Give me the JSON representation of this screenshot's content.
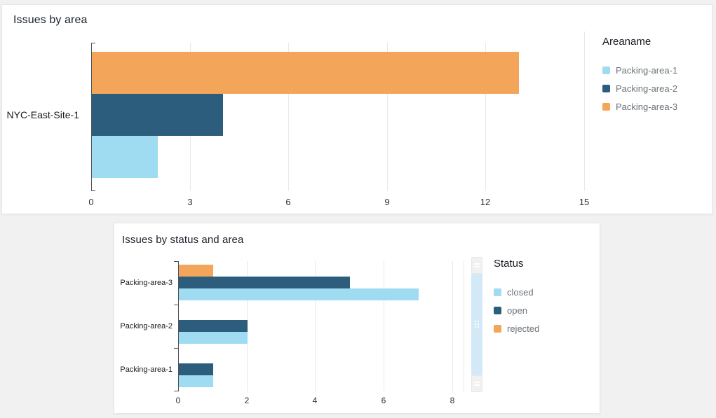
{
  "page": {
    "background_color": "#f1f1f2"
  },
  "chart_data": [
    {
      "id": "issues-by-area",
      "type": "bar",
      "orientation": "horizontal",
      "title": "Issues by area",
      "categories": [
        "NYC-East-Site-1"
      ],
      "series": [
        {
          "name": "Packing-area-1",
          "color": "#9FDCF1",
          "values": [
            2
          ]
        },
        {
          "name": "Packing-area-2",
          "color": "#2D5D7C",
          "values": [
            4
          ]
        },
        {
          "name": "Packing-area-3",
          "color": "#F3A65A",
          "values": [
            13
          ]
        }
      ],
      "x_ticks": [
        0,
        3,
        6,
        9,
        12,
        15
      ],
      "xlim": [
        0,
        15
      ],
      "grid": true,
      "legend_title": "Areaname",
      "legend_position": "right",
      "bar_order_top_to_bottom": [
        "Packing-area-3",
        "Packing-area-2",
        "Packing-area-1"
      ]
    },
    {
      "id": "issues-by-status-and-area",
      "type": "bar",
      "orientation": "horizontal",
      "title": "Issues by status and area",
      "categories": [
        "Packing-area-3",
        "Packing-area-2",
        "Packing-area-1"
      ],
      "series": [
        {
          "name": "closed",
          "color": "#9FDCF1",
          "values": [
            7,
            2,
            1
          ]
        },
        {
          "name": "open",
          "color": "#2D5D7C",
          "values": [
            5,
            2,
            1
          ]
        },
        {
          "name": "rejected",
          "color": "#F3A65A",
          "values": [
            1,
            0,
            0
          ]
        }
      ],
      "x_ticks": [
        0,
        2,
        4,
        6,
        8
      ],
      "xlim": [
        0,
        8.35
      ],
      "grid": true,
      "legend_title": "Status",
      "legend_position": "right",
      "bar_order_top_to_bottom": [
        "rejected",
        "open",
        "closed"
      ],
      "has_y_scrollbar": true
    }
  ]
}
